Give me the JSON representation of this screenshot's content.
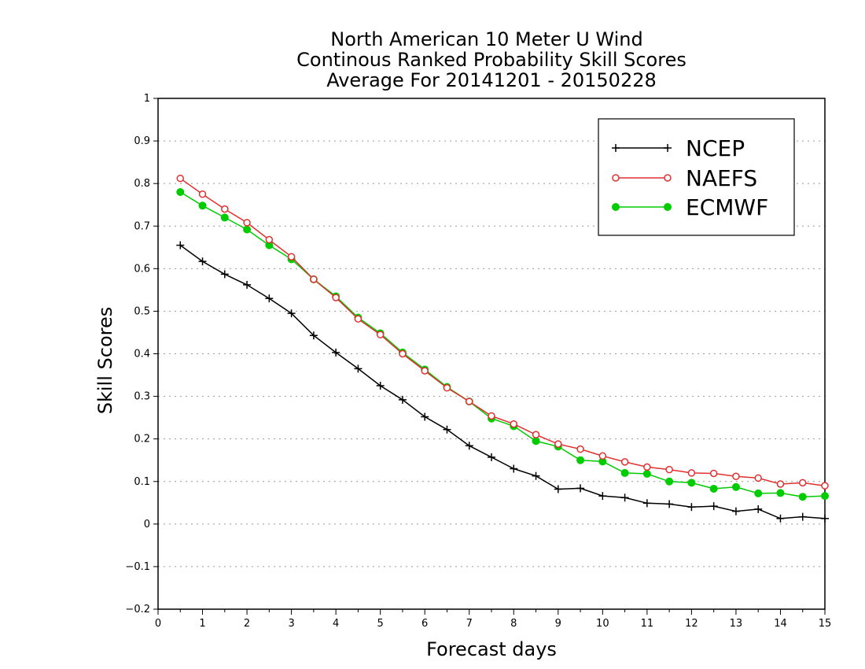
{
  "chart_data": {
    "type": "line",
    "title": [
      "North American 10 Meter U Wind",
      "Continous Ranked Probability Skill Scores",
      "Average For 20141201 - 20150228"
    ],
    "xlabel": "Forecast days",
    "ylabel": "Skill Scores",
    "xlim": [
      0,
      15
    ],
    "ylim": [
      -0.2,
      1
    ],
    "xticks": [
      "0",
      "1",
      "2",
      "3",
      "4",
      "5",
      "6",
      "7",
      "8",
      "9",
      "10",
      "11",
      "12",
      "13",
      "14",
      "15"
    ],
    "yticks": [
      "−0.2",
      "−0.1",
      "0",
      "0.1",
      "0.2",
      "0.3",
      "0.4",
      "0.5",
      "0.6",
      "0.7",
      "0.8",
      "0.9",
      "1"
    ],
    "grid": "horizontal dotted",
    "legend_position": "top-right",
    "x": [
      0.5,
      1,
      1.5,
      2,
      2.5,
      3,
      3.5,
      4,
      4.5,
      5,
      5.5,
      6,
      6.5,
      7,
      7.5,
      8,
      8.5,
      9,
      9.5,
      10,
      10.5,
      11,
      11.5,
      12,
      12.5,
      13,
      13.5,
      14,
      14.5,
      15
    ],
    "series": [
      {
        "name": "NCEP",
        "color": "#000000",
        "marker": "plus",
        "values": [
          0.655,
          0.617,
          0.587,
          0.562,
          0.53,
          0.495,
          0.443,
          0.403,
          0.365,
          0.325,
          0.292,
          0.252,
          0.222,
          0.184,
          0.157,
          0.13,
          0.113,
          0.082,
          0.084,
          0.066,
          0.062,
          0.049,
          0.047,
          0.04,
          0.042,
          0.03,
          0.035,
          0.013,
          0.017,
          0.013
        ]
      },
      {
        "name": "NAEFS",
        "color": "#e03030",
        "marker": "open-circle",
        "values": [
          0.812,
          0.775,
          0.74,
          0.708,
          0.668,
          0.628,
          0.575,
          0.532,
          0.482,
          0.445,
          0.4,
          0.36,
          0.32,
          0.288,
          0.254,
          0.235,
          0.21,
          0.188,
          0.176,
          0.16,
          0.146,
          0.134,
          0.128,
          0.12,
          0.119,
          0.112,
          0.108,
          0.094,
          0.097,
          0.09
        ]
      },
      {
        "name": "ECMWF",
        "color": "#00cc00",
        "marker": "filled-circle",
        "values": [
          0.78,
          0.748,
          0.72,
          0.692,
          0.655,
          0.622,
          0.575,
          0.535,
          0.485,
          0.448,
          0.403,
          0.363,
          0.322,
          0.288,
          0.248,
          0.23,
          0.195,
          0.182,
          0.15,
          0.147,
          0.12,
          0.118,
          0.1,
          0.097,
          0.083,
          0.087,
          0.072,
          0.073,
          0.064,
          0.066
        ]
      }
    ]
  }
}
